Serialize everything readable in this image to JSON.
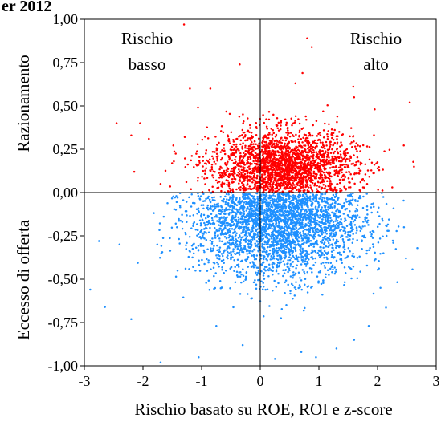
{
  "chart_data": {
    "type": "scatter",
    "title": "er 2012",
    "xlabel": "Rischio basato su ROE, ROI e z-score",
    "ylabel_top": "Razionamento",
    "ylabel_bottom": "Eccesso di offerta",
    "xlim": [
      -3,
      3
    ],
    "ylim": [
      -1,
      1
    ],
    "x_ticks": [
      {
        "value": -3,
        "label": "-3"
      },
      {
        "value": -2,
        "label": "-2"
      },
      {
        "value": -1,
        "label": "-1"
      },
      {
        "value": 0,
        "label": "0"
      },
      {
        "value": 1,
        "label": "1"
      },
      {
        "value": 2,
        "label": "2"
      },
      {
        "value": 3,
        "label": "3"
      }
    ],
    "y_ticks": [
      {
        "value": 1.0,
        "label": "1,00"
      },
      {
        "value": 0.75,
        "label": "0,75"
      },
      {
        "value": 0.5,
        "label": "0,50"
      },
      {
        "value": 0.25,
        "label": "0,25"
      },
      {
        "value": 0.0,
        "label": "0,00"
      },
      {
        "value": -0.25,
        "label": "-0,25"
      },
      {
        "value": -0.5,
        "label": "-0,50"
      },
      {
        "value": -0.75,
        "label": "-0,75"
      },
      {
        "value": -1.0,
        "label": "-1,00"
      }
    ],
    "quadrant_labels": {
      "low_risk": [
        "Rischio",
        "basso"
      ],
      "high_risk": [
        "Rischio",
        "alto"
      ]
    },
    "grid": false,
    "reference_lines": {
      "x": 0,
      "y": 0
    },
    "series": [
      {
        "color": "#ff0000",
        "distribution": {
          "n": 2600,
          "x_mean": 0.4,
          "x_sd": 0.62,
          "y_mean": 0.14,
          "y_sd": 0.11,
          "y_min": 0,
          "y_max": 1
        },
        "points": [
          {
            "x": -1.3,
            "y": 0.97
          },
          {
            "x": 0.8,
            "y": 0.89
          },
          {
            "x": 0.88,
            "y": 0.84
          },
          {
            "x": -0.35,
            "y": 0.74
          },
          {
            "x": 0.72,
            "y": 0.69
          },
          {
            "x": 2.55,
            "y": 0.52
          },
          {
            "x": -1.2,
            "y": 0.6
          },
          {
            "x": -0.85,
            "y": 0.6
          },
          {
            "x": -2.45,
            "y": 0.4
          },
          {
            "x": -2.05,
            "y": 0.4
          },
          {
            "x": -2.2,
            "y": 0.33
          },
          {
            "x": -1.9,
            "y": 0.31
          },
          {
            "x": -2.15,
            "y": 0.12
          },
          {
            "x": -1.7,
            "y": 0.05
          },
          {
            "x": 2.25,
            "y": 0.03
          },
          {
            "x": 1.95,
            "y": 0.48
          },
          {
            "x": 1.6,
            "y": 0.55
          },
          {
            "x": 0.6,
            "y": 0.63
          }
        ]
      },
      {
        "color": "#1e90ff",
        "distribution": {
          "n": 3800,
          "x_mean": 0.3,
          "x_sd": 0.72,
          "y_mean": -0.15,
          "y_sd": 0.17,
          "y_min": -1,
          "y_max": 0
        },
        "points": [
          {
            "x": -2.9,
            "y": -0.56
          },
          {
            "x": -2.65,
            "y": -0.66
          },
          {
            "x": -2.2,
            "y": -0.73
          },
          {
            "x": -1.7,
            "y": -0.98
          },
          {
            "x": -1.05,
            "y": -0.95
          },
          {
            "x": -0.75,
            "y": -0.77
          },
          {
            "x": 0.7,
            "y": -0.92
          },
          {
            "x": 0.95,
            "y": -0.95
          },
          {
            "x": 1.6,
            "y": -0.85
          },
          {
            "x": 1.85,
            "y": -0.77
          },
          {
            "x": 2.1,
            "y": -0.35
          },
          {
            "x": 2.05,
            "y": -0.55
          },
          {
            "x": -2.75,
            "y": -0.28
          },
          {
            "x": -2.4,
            "y": -0.3
          },
          {
            "x": 2.45,
            "y": -0.2
          },
          {
            "x": 0.25,
            "y": -0.96
          },
          {
            "x": -0.3,
            "y": -0.88
          },
          {
            "x": 1.3,
            "y": -0.9
          }
        ]
      }
    ]
  }
}
